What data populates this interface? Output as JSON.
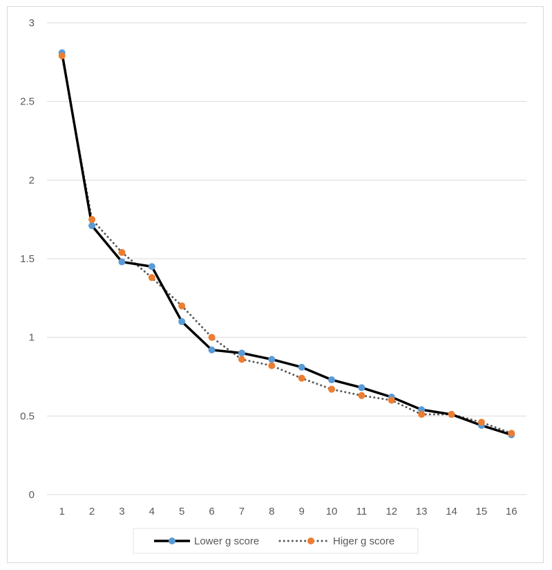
{
  "chart_data": {
    "type": "line",
    "title": "",
    "xlabel": "",
    "ylabel": "",
    "categories": [
      "1",
      "2",
      "3",
      "4",
      "5",
      "6",
      "7",
      "8",
      "9",
      "10",
      "11",
      "12",
      "13",
      "14",
      "15",
      "16"
    ],
    "ylim": [
      0,
      3
    ],
    "yticks": [
      "0",
      "0.5",
      "1",
      "1.5",
      "2",
      "2.5",
      "3"
    ],
    "grid": true,
    "legend_position": "bottom",
    "series": [
      {
        "name": "Lower g score",
        "line_color": "#000000",
        "marker_color": "#5b9bd5",
        "line_style": "solid",
        "values": [
          2.81,
          1.71,
          1.48,
          1.45,
          1.1,
          0.92,
          0.9,
          0.86,
          0.81,
          0.73,
          0.68,
          0.62,
          0.54,
          0.51,
          0.44,
          0.38
        ]
      },
      {
        "name": "Higer g score",
        "line_color": "#595959",
        "marker_color": "#ed7d31",
        "line_style": "dotted",
        "values": [
          2.79,
          1.75,
          1.54,
          1.38,
          1.2,
          1.0,
          0.86,
          0.82,
          0.74,
          0.67,
          0.63,
          0.6,
          0.51,
          0.51,
          0.46,
          0.39
        ]
      }
    ]
  }
}
